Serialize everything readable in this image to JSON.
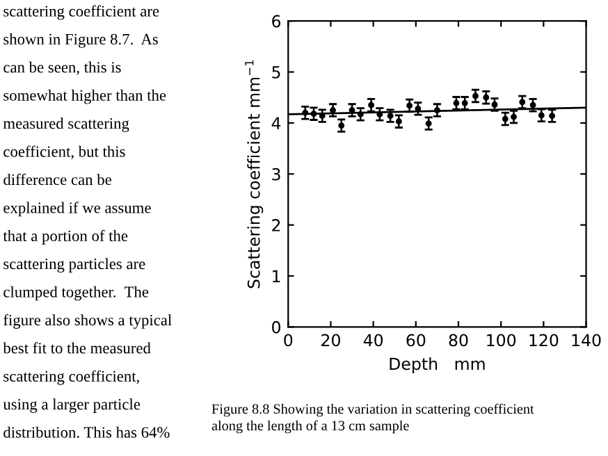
{
  "chart_data": {
    "type": "scatter",
    "xlabel": "Depth   mm",
    "ylabel": "Scattering coefficient mm$^{−1}$",
    "xlim": [
      0,
      140
    ],
    "ylim": [
      0,
      6
    ],
    "xticks": [
      0,
      20,
      40,
      60,
      80,
      100,
      120,
      140
    ],
    "yticks": [
      0,
      1,
      2,
      3,
      4,
      5,
      6
    ],
    "grid": false,
    "series": [
      {
        "marker": "circle",
        "color": "#000000",
        "x": [
          8,
          12,
          16,
          21,
          25,
          30,
          34,
          39,
          43,
          48,
          52,
          57,
          61,
          66,
          70,
          79,
          83,
          88,
          93,
          97,
          102,
          106,
          110,
          115,
          119,
          124
        ],
        "values": [
          4.2,
          4.18,
          4.14,
          4.25,
          3.95,
          4.25,
          4.17,
          4.35,
          4.17,
          4.14,
          4.03,
          4.34,
          4.28,
          3.99,
          4.25,
          4.39,
          4.39,
          4.53,
          4.5,
          4.36,
          4.08,
          4.12,
          4.41,
          4.35,
          4.15,
          4.14
        ],
        "errors": [
          0.12,
          0.12,
          0.12,
          0.12,
          0.12,
          0.12,
          0.12,
          0.12,
          0.12,
          0.12,
          0.12,
          0.12,
          0.12,
          0.12,
          0.12,
          0.12,
          0.12,
          0.12,
          0.12,
          0.12,
          0.12,
          0.12,
          0.12,
          0.12,
          0.12,
          0.12
        ]
      },
      {
        "type": "line",
        "color": "#000000",
        "x": [
          0,
          140
        ],
        "values": [
          4.17,
          4.3
        ]
      }
    ],
    "annotations": [
      "scattering coefficient are",
      "shown in Figure 8.7.  As",
      "can be seen, this is",
      "somewhat higher than the",
      "measured scattering",
      "coefficient, but this",
      "difference can be",
      "explained if we assume",
      "that a portion of the",
      "scattering particles are",
      "clumped together.  The",
      "figure also shows a typical",
      "best fit to the measured",
      "scattering coefficient,",
      "using a larger particle",
      "distribution. This has 64%",
      "Figure 8.8 Showing the variation in scattering coefficient",
      "along the length of a 13 cm sample"
    ]
  }
}
